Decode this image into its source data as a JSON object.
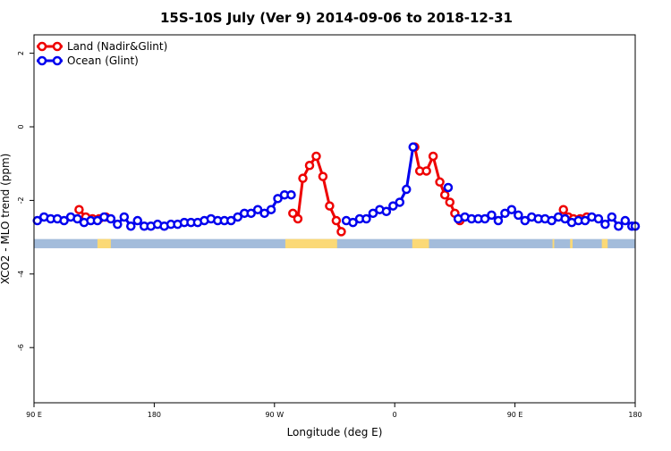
{
  "chart_data": {
    "type": "line",
    "title": "15S-10S July (Ver 9)   2014-09-06 to 2018-12-31",
    "xlabel": "Longitude (deg E)",
    "ylabel": "XCO2 - MLO trend (ppm)",
    "xlim": [
      90,
      450
    ],
    "ylim": [
      -7.5,
      2.5
    ],
    "x_tick_values": [
      90,
      162,
      234,
      306,
      378,
      450
    ],
    "x_tick_labels": [
      "90 E",
      "180",
      "90 W",
      "0",
      "90 E",
      "180"
    ],
    "y_tick_values": [
      2,
      0,
      -2,
      -4,
      -6
    ],
    "y_tick_labels": [
      "2",
      "0",
      "-2",
      "-4",
      "-6"
    ],
    "legend_position": "top-left",
    "landmask": {
      "y_top": -3.05,
      "y_bottom": -3.3,
      "ocean_color": "#A3BCDB",
      "land_color": "#FBD976",
      "land_ranges": [
        [
          240.5,
          271.5
        ],
        [
          400.5,
          401.5
        ],
        [
          411,
          412.5
        ],
        [
          430,
          433.5
        ],
        [
          316.5,
          326.5
        ],
        [
          128.5,
          129.5
        ],
        [
          133.5,
          134.5
        ],
        [
          128,
          136
        ]
      ]
    },
    "series": [
      {
        "name": "Land (Nadir&Glint)",
        "color": "#EE0000",
        "points": [
          [
            117,
            -2.25
          ],
          [
            121,
            -2.45
          ],
          [
            125,
            -2.5
          ],
          [
            129,
            -2.5
          ],
          [
            133,
            -2.45
          ],
          [
            245,
            -2.35
          ],
          [
            248,
            -2.5
          ],
          [
            251,
            -1.4
          ],
          [
            255,
            -1.05
          ],
          [
            259,
            -0.8
          ],
          [
            263,
            -1.35
          ],
          [
            267,
            -2.15
          ],
          [
            271,
            -2.55
          ],
          [
            274,
            -2.85
          ],
          [
            318,
            -0.55
          ],
          [
            321,
            -1.2
          ],
          [
            325,
            -1.2
          ],
          [
            329,
            -0.8
          ],
          [
            333,
            -1.5
          ],
          [
            336,
            -1.85
          ],
          [
            339,
            -2.05
          ],
          [
            342,
            -2.35
          ],
          [
            345,
            -2.55
          ],
          [
            407,
            -2.25
          ],
          [
            410,
            -2.45
          ],
          [
            413,
            -2.5
          ],
          [
            417,
            -2.5
          ],
          [
            421,
            -2.45
          ]
        ]
      },
      {
        "name": "Ocean (Glint)",
        "color": "#0000EE",
        "segments": [
          [
            [
              92,
              -2.55
            ],
            [
              96,
              -2.45
            ],
            [
              100,
              -2.5
            ],
            [
              104,
              -2.5
            ],
            [
              108,
              -2.55
            ],
            [
              112,
              -2.45
            ],
            [
              116,
              -2.5
            ],
            [
              120,
              -2.6
            ],
            [
              124,
              -2.55
            ],
            [
              128,
              -2.55
            ],
            [
              132,
              -2.45
            ],
            [
              136,
              -2.5
            ],
            [
              140,
              -2.65
            ],
            [
              144,
              -2.45
            ],
            [
              148,
              -2.7
            ],
            [
              152,
              -2.55
            ],
            [
              156,
              -2.7
            ],
            [
              160,
              -2.7
            ],
            [
              164,
              -2.65
            ],
            [
              168,
              -2.7
            ],
            [
              172,
              -2.65
            ],
            [
              176,
              -2.65
            ],
            [
              180,
              -2.6
            ],
            [
              184,
              -2.6
            ],
            [
              188,
              -2.6
            ],
            [
              192,
              -2.55
            ],
            [
              196,
              -2.5
            ],
            [
              200,
              -2.55
            ],
            [
              204,
              -2.55
            ],
            [
              208,
              -2.55
            ],
            [
              212,
              -2.45
            ],
            [
              216,
              -2.35
            ],
            [
              220,
              -2.35
            ],
            [
              224,
              -2.25
            ],
            [
              228,
              -2.35
            ],
            [
              232,
              -2.25
            ],
            [
              236,
              -1.95
            ],
            [
              240,
              -1.85
            ],
            [
              244,
              -1.85
            ]
          ],
          [
            [
              277,
              -2.55
            ],
            [
              281,
              -2.6
            ],
            [
              285,
              -2.5
            ],
            [
              289,
              -2.5
            ],
            [
              293,
              -2.35
            ],
            [
              297,
              -2.25
            ],
            [
              301,
              -2.3
            ],
            [
              305,
              -2.15
            ],
            [
              309,
              -2.05
            ],
            [
              313,
              -1.7
            ],
            [
              317,
              -0.55
            ]
          ],
          [
            [
              338,
              -1.65
            ]
          ],
          [
            [
              344,
              -2.5
            ],
            [
              348,
              -2.45
            ],
            [
              352,
              -2.5
            ],
            [
              356,
              -2.5
            ],
            [
              360,
              -2.5
            ],
            [
              364,
              -2.4
            ],
            [
              368,
              -2.55
            ],
            [
              372,
              -2.35
            ],
            [
              376,
              -2.25
            ],
            [
              380,
              -2.4
            ],
            [
              384,
              -2.55
            ],
            [
              388,
              -2.45
            ],
            [
              392,
              -2.5
            ],
            [
              396,
              -2.5
            ],
            [
              400,
              -2.55
            ],
            [
              404,
              -2.45
            ],
            [
              408,
              -2.5
            ],
            [
              412,
              -2.6
            ],
            [
              416,
              -2.55
            ],
            [
              420,
              -2.55
            ],
            [
              424,
              -2.45
            ],
            [
              428,
              -2.5
            ],
            [
              432,
              -2.65
            ],
            [
              436,
              -2.45
            ],
            [
              440,
              -2.7
            ],
            [
              444,
              -2.55
            ],
            [
              448,
              -2.7
            ],
            [
              450,
              -2.7
            ]
          ]
        ]
      }
    ]
  }
}
